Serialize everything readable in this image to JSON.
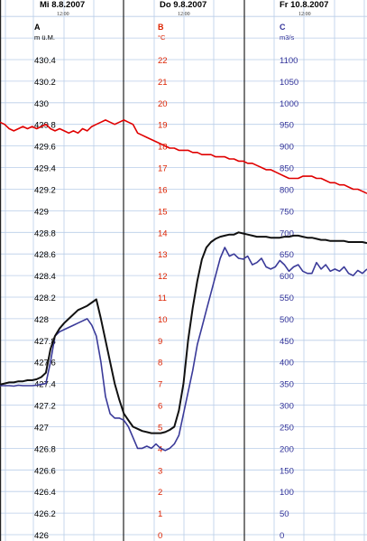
{
  "chart_data": {
    "type": "line",
    "dates": [
      {
        "label": "Mi  8.8.2007",
        "time": "12:00"
      },
      {
        "label": "Do  9.8.2007",
        "time": "12:00"
      },
      {
        "label": "Fr  10.8.2007",
        "time": "12:00"
      }
    ],
    "axes": [
      {
        "letter": "A",
        "unit": "m ü.M.",
        "color": "#000000",
        "min": 426,
        "max": 430.4,
        "ticks": [
          "430.4",
          "430.2",
          "430",
          "429.8",
          "429.6",
          "429.4",
          "429.2",
          "429",
          "428.8",
          "428.6",
          "428.4",
          "428.2",
          "428",
          "427.8",
          "427.6",
          "427.4",
          "427.2",
          "427",
          "426.8",
          "426.6",
          "426.4",
          "426.2",
          "426"
        ]
      },
      {
        "letter": "B",
        "unit": "°C",
        "color": "#dd2200",
        "min": 0,
        "max": 22,
        "ticks": [
          "22",
          "21",
          "20",
          "19",
          "18",
          "17",
          "16",
          "15",
          "14",
          "13",
          "12",
          "11",
          "10",
          "9",
          "8",
          "7",
          "6",
          "5",
          "4",
          "3",
          "2",
          "1",
          "0"
        ]
      },
      {
        "letter": "C",
        "unit": "m3/s",
        "color": "#333399",
        "min": 0,
        "max": 1100,
        "ticks": [
          "1100",
          "1050",
          "1000",
          "950",
          "900",
          "850",
          "800",
          "750",
          "700",
          "650",
          "600",
          "550",
          "500",
          "450",
          "400",
          "350",
          "300",
          "250",
          "200",
          "150",
          "100",
          "50",
          "0"
        ]
      }
    ],
    "x_range": [
      0,
      80
    ],
    "series": [
      {
        "axis": "B",
        "color": "#e00000",
        "x": [
          0,
          1,
          2,
          3,
          4,
          5,
          6,
          7,
          8,
          9,
          10,
          11,
          12,
          13,
          14,
          15,
          16,
          17,
          18,
          19,
          20,
          21,
          22,
          23,
          24,
          25,
          26,
          27,
          28,
          29,
          30,
          31,
          32,
          33,
          34,
          35,
          36,
          37,
          38,
          39,
          40,
          41,
          42,
          43,
          44,
          45,
          46,
          47,
          48,
          49,
          50,
          51,
          52,
          53,
          54,
          55,
          56,
          57,
          58,
          59,
          60,
          61,
          62,
          63,
          64,
          65,
          66,
          67,
          68,
          69,
          70,
          71,
          72,
          73,
          74,
          75,
          76,
          77,
          78,
          79,
          80
        ],
        "y": [
          19.1,
          19.0,
          18.8,
          18.7,
          18.8,
          18.9,
          18.8,
          18.9,
          18.8,
          18.9,
          19.0,
          18.8,
          18.7,
          18.8,
          18.7,
          18.6,
          18.7,
          18.6,
          18.8,
          18.7,
          18.9,
          19.0,
          19.1,
          19.2,
          19.1,
          19.0,
          19.1,
          19.2,
          19.1,
          19.0,
          18.6,
          18.5,
          18.4,
          18.3,
          18.2,
          18.1,
          18.0,
          17.9,
          17.9,
          17.8,
          17.8,
          17.8,
          17.7,
          17.7,
          17.6,
          17.6,
          17.6,
          17.5,
          17.5,
          17.5,
          17.4,
          17.4,
          17.3,
          17.3,
          17.2,
          17.2,
          17.1,
          17.0,
          16.9,
          16.9,
          16.8,
          16.7,
          16.6,
          16.5,
          16.5,
          16.5,
          16.6,
          16.6,
          16.6,
          16.5,
          16.5,
          16.4,
          16.3,
          16.3,
          16.2,
          16.2,
          16.1,
          16.0,
          16.0,
          15.9,
          15.8
        ]
      },
      {
        "axis": "C",
        "color": "#3a3a99",
        "x": [
          0,
          1,
          2,
          3,
          4,
          5,
          6,
          7,
          8,
          9,
          10,
          11,
          12,
          13,
          14,
          15,
          16,
          17,
          18,
          19,
          20,
          21,
          22,
          23,
          24,
          25,
          26,
          27,
          28,
          29,
          30,
          31,
          32,
          33,
          34,
          35,
          36,
          37,
          38,
          39,
          40,
          41,
          42,
          43,
          44,
          45,
          46,
          47,
          48,
          49,
          50,
          51,
          52,
          53,
          54,
          55,
          56,
          57,
          58,
          59,
          60,
          61,
          62,
          63,
          64,
          65,
          66,
          67,
          68,
          69,
          70,
          71,
          72,
          73,
          74,
          75,
          76,
          77,
          78,
          79,
          80
        ],
        "y": [
          345,
          345,
          345,
          344,
          346,
          345,
          345,
          345,
          346,
          348,
          350,
          400,
          460,
          470,
          475,
          480,
          485,
          490,
          495,
          500,
          485,
          460,
          400,
          320,
          280,
          270,
          270,
          265,
          250,
          225,
          200,
          200,
          205,
          200,
          210,
          200,
          195,
          200,
          210,
          230,
          280,
          330,
          380,
          440,
          480,
          520,
          560,
          600,
          640,
          665,
          645,
          650,
          640,
          638,
          645,
          625,
          630,
          640,
          620,
          615,
          620,
          635,
          625,
          610,
          620,
          625,
          610,
          605,
          605,
          630,
          615,
          625,
          610,
          615,
          610,
          620,
          605,
          600,
          612,
          605,
          615
        ]
      },
      {
        "axis": "A",
        "color": "#111111",
        "x": [
          0,
          1,
          2,
          3,
          4,
          5,
          6,
          7,
          8,
          9,
          10,
          11,
          12,
          13,
          14,
          15,
          16,
          17,
          18,
          19,
          20,
          21,
          22,
          23,
          24,
          25,
          26,
          27,
          28,
          29,
          30,
          31,
          32,
          33,
          34,
          35,
          36,
          37,
          38,
          39,
          40,
          41,
          42,
          43,
          44,
          45,
          46,
          47,
          48,
          49,
          50,
          51,
          52,
          53,
          54,
          55,
          56,
          57,
          58,
          59,
          60,
          61,
          62,
          63,
          64,
          65,
          66,
          67,
          68,
          69,
          70,
          71,
          72,
          73,
          74,
          75,
          76,
          77,
          78,
          79,
          80
        ],
        "y": [
          427.39,
          427.4,
          427.41,
          427.41,
          427.42,
          427.42,
          427.43,
          427.43,
          427.44,
          427.46,
          427.5,
          427.72,
          427.84,
          427.91,
          427.96,
          428.0,
          428.04,
          428.08,
          428.1,
          428.12,
          428.15,
          428.18,
          428.0,
          427.8,
          427.6,
          427.4,
          427.25,
          427.12,
          427.06,
          427.0,
          426.98,
          426.96,
          426.95,
          426.94,
          426.94,
          426.94,
          426.95,
          426.97,
          427.0,
          427.15,
          427.4,
          427.8,
          428.1,
          428.35,
          428.55,
          428.66,
          428.71,
          428.74,
          428.76,
          428.77,
          428.78,
          428.78,
          428.8,
          428.79,
          428.78,
          428.77,
          428.76,
          428.76,
          428.76,
          428.75,
          428.75,
          428.75,
          428.76,
          428.76,
          428.77,
          428.77,
          428.76,
          428.75,
          428.75,
          428.74,
          428.73,
          428.73,
          428.72,
          428.72,
          428.72,
          428.72,
          428.71,
          428.71,
          428.71,
          428.71,
          428.7
        ]
      }
    ]
  }
}
